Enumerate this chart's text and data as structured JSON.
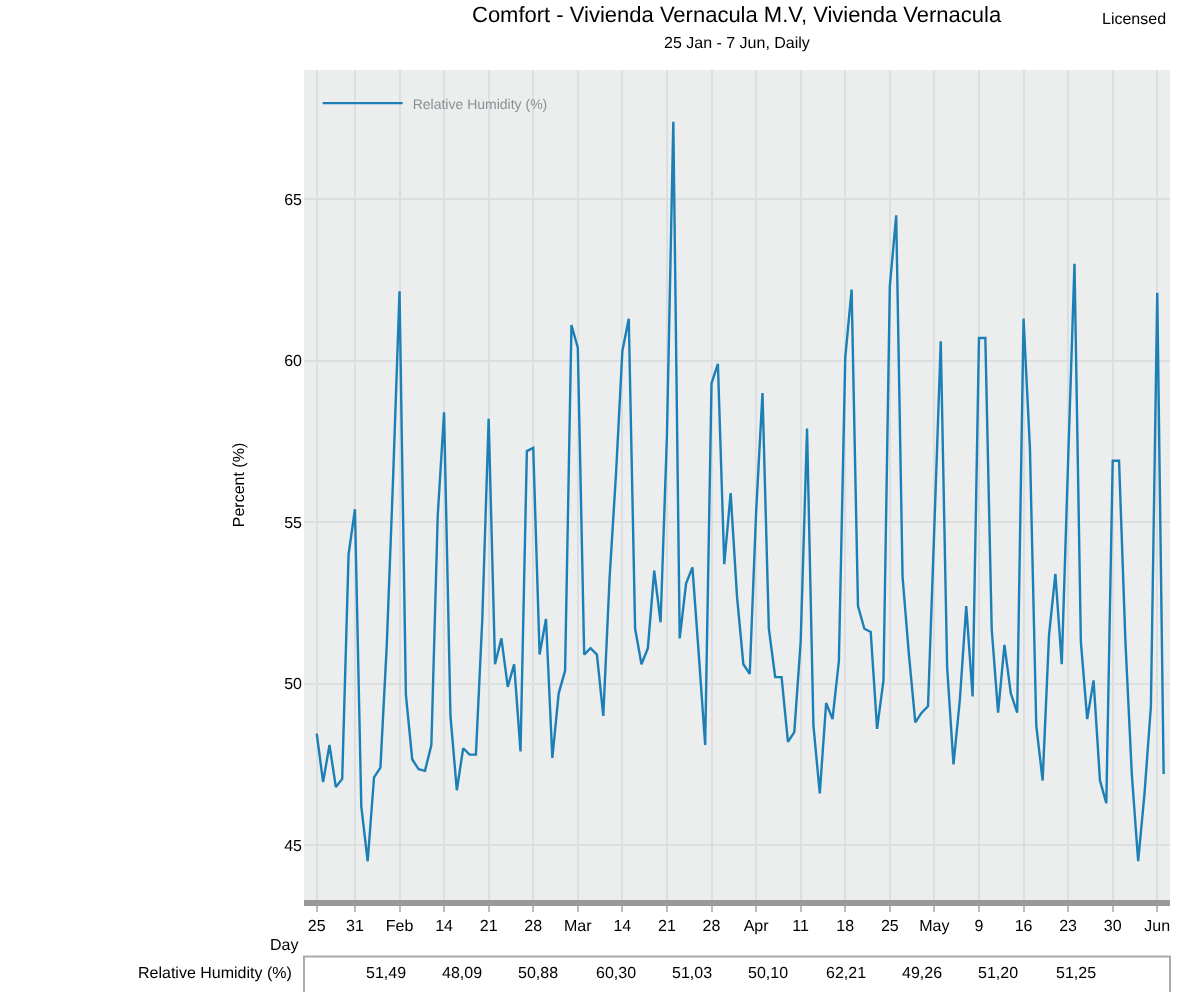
{
  "chart_data": {
    "type": "line",
    "title": "Comfort - Vivienda Vernacula M.V, Vivienda Vernacula",
    "subtitle": "25 Jan - 7 Jun, Daily",
    "xlabel": "Day",
    "ylabel": "Percent (%)",
    "annotations": [
      "Licensed",
      "Relative Humidity (%)",
      "51,49",
      "48,09",
      "50,88",
      "60,30",
      "51,03",
      "50,10",
      "62,21",
      "49,26",
      "51,20",
      "51,25"
    ],
    "x": [
      "--01-25",
      "--01-26",
      "--01-27",
      "--01-28",
      "--01-29",
      "--01-30",
      "--01-31",
      "--02-01",
      "--02-02",
      "--02-03",
      "--02-04",
      "--02-05",
      "--02-06",
      "--02-07",
      "--02-08",
      "--02-09",
      "--02-10",
      "--02-11",
      "--02-12",
      "--02-13",
      "--02-14",
      "--02-15",
      "--02-16",
      "--02-17",
      "--02-18",
      "--02-19",
      "--02-20",
      "--02-21",
      "--02-22",
      "--02-23",
      "--02-24",
      "--02-25",
      "--02-26",
      "--02-27",
      "--02-28",
      "--03-01",
      "--03-02",
      "--03-03",
      "--03-04",
      "--03-05",
      "--03-06",
      "--03-07",
      "--03-08",
      "--03-09",
      "--03-10",
      "--03-11",
      "--03-12",
      "--03-13",
      "--03-14",
      "--03-15",
      "--03-16",
      "--03-17",
      "--03-18",
      "--03-19",
      "--03-20",
      "--03-21",
      "--03-22",
      "--03-23",
      "--03-24",
      "--03-25",
      "--03-26",
      "--03-27",
      "--03-28",
      "--03-29",
      "--03-30",
      "--03-31",
      "--04-01",
      "--04-02",
      "--04-03",
      "--04-04",
      "--04-05",
      "--04-06",
      "--04-07",
      "--04-08",
      "--04-09",
      "--04-10",
      "--04-11",
      "--04-12",
      "--04-13",
      "--04-14",
      "--04-15",
      "--04-16",
      "--04-17",
      "--04-18",
      "--04-19",
      "--04-20",
      "--04-21",
      "--04-22",
      "--04-23",
      "--04-24",
      "--04-25",
      "--04-26",
      "--04-27",
      "--04-28",
      "--04-29",
      "--04-30",
      "--05-01",
      "--05-02",
      "--05-03",
      "--05-04",
      "--05-05",
      "--05-06",
      "--05-07",
      "--05-08",
      "--05-09",
      "--05-10",
      "--05-11",
      "--05-12",
      "--05-13",
      "--05-14",
      "--05-15",
      "--05-16",
      "--05-17",
      "--05-18",
      "--05-19",
      "--05-20",
      "--05-21",
      "--05-22",
      "--05-23",
      "--05-24",
      "--05-25",
      "--05-26",
      "--05-27",
      "--05-28",
      "--05-29",
      "--05-30",
      "--05-31",
      "--06-01",
      "--06-02",
      "--06-03",
      "--06-04",
      "--06-05",
      "--06-06",
      "--06-07"
    ],
    "series": [
      {
        "name": "Relative Humidity (%)",
        "color": "#1c7fb6",
        "values": [
          48.45,
          46.95,
          48.1,
          46.8,
          47.05,
          54.0,
          55.4,
          46.2,
          44.5,
          47.1,
          47.4,
          51.2,
          56.4,
          62.15,
          49.66,
          47.65,
          47.35,
          47.3,
          48.1,
          55.2,
          58.4,
          49.0,
          46.7,
          48.0,
          47.8,
          47.8,
          52.0,
          58.2,
          50.6,
          51.4,
          49.9,
          50.6,
          47.9,
          57.2,
          57.3,
          50.9,
          52.0,
          47.7,
          49.7,
          50.4,
          61.1,
          60.4,
          50.9,
          51.1,
          50.9,
          49.0,
          53.3,
          56.5,
          60.3,
          61.3,
          51.7,
          50.6,
          51.1,
          53.5,
          51.9,
          57.7,
          67.4,
          51.4,
          53.1,
          53.6,
          50.9,
          48.1,
          59.3,
          59.9,
          53.7,
          55.9,
          52.7,
          50.6,
          50.3,
          55.3,
          59.0,
          51.7,
          50.2,
          50.2,
          48.2,
          48.5,
          51.3,
          57.9,
          48.7,
          46.6,
          49.4,
          48.9,
          50.7,
          60.1,
          62.2,
          52.4,
          51.7,
          51.6,
          48.6,
          50.1,
          62.3,
          64.5,
          53.3,
          50.9,
          48.8,
          49.1,
          49.3,
          54.9,
          60.6,
          50.5,
          47.5,
          49.5,
          52.4,
          49.6,
          60.7,
          60.7,
          51.7,
          49.1,
          51.2,
          49.7,
          49.1,
          61.3,
          57.3,
          48.7,
          47.0,
          51.5,
          53.4,
          50.6,
          56.9,
          63.0,
          51.3,
          48.9,
          50.1,
          47.0,
          46.3,
          56.9,
          56.9,
          51.3,
          47.2,
          44.5,
          46.6,
          49.3,
          62.1,
          47.2
        ]
      }
    ],
    "xlim": [
      "--01-23",
      "--06-08"
    ],
    "xticks": [
      {
        "value": "--01-25",
        "label": "25"
      },
      {
        "value": "--01-31",
        "label": "31"
      },
      {
        "value": "--02-07",
        "label": "Feb"
      },
      {
        "value": "--02-14",
        "label": "14"
      },
      {
        "value": "--02-21",
        "label": "21"
      },
      {
        "value": "--02-28",
        "label": "28"
      },
      {
        "value": "--03-07",
        "label": "Mar"
      },
      {
        "value": "--03-14",
        "label": "14"
      },
      {
        "value": "--03-21",
        "label": "21"
      },
      {
        "value": "--03-28",
        "label": "28"
      },
      {
        "value": "--04-04",
        "label": "Apr"
      },
      {
        "value": "--04-11",
        "label": "11"
      },
      {
        "value": "--04-18",
        "label": "18"
      },
      {
        "value": "--04-25",
        "label": "25"
      },
      {
        "value": "--05-02",
        "label": "May"
      },
      {
        "value": "--05-09",
        "label": "9"
      },
      {
        "value": "--05-16",
        "label": "16"
      },
      {
        "value": "--05-23",
        "label": "23"
      },
      {
        "value": "--05-30",
        "label": "30"
      },
      {
        "value": "--06-06",
        "label": "Jun"
      }
    ],
    "ylim": [
      43.3,
      69
    ],
    "yticks": [
      45,
      50,
      55,
      60,
      65
    ],
    "grid": true,
    "legend": "top left",
    "marker": "none",
    "line_style": "solid"
  }
}
